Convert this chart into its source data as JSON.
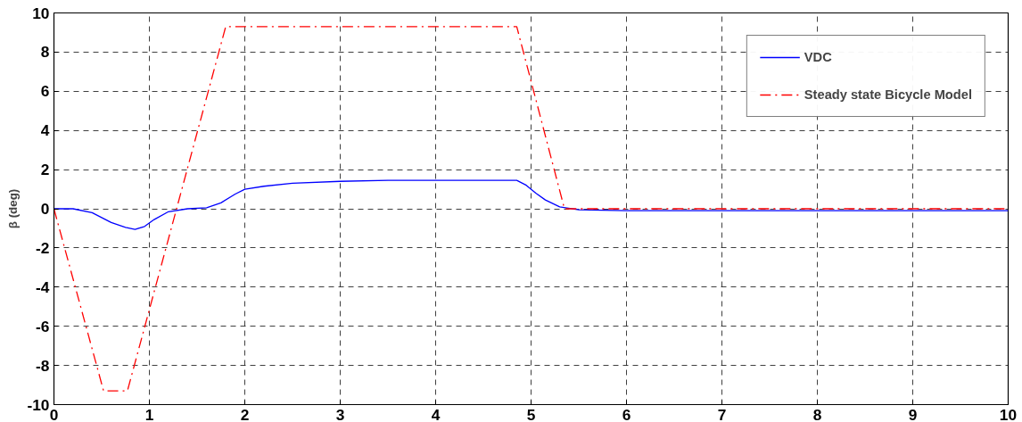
{
  "chart_data": {
    "type": "line",
    "ylabel": "β (deg)",
    "xlim": [
      0,
      10
    ],
    "ylim": [
      -10,
      10
    ],
    "xticks": [
      0,
      1,
      2,
      3,
      4,
      5,
      6,
      7,
      8,
      9,
      10
    ],
    "yticks": [
      -10,
      -8,
      -6,
      -4,
      -2,
      0,
      2,
      4,
      6,
      8,
      10
    ],
    "grid": true,
    "legend": "top right",
    "series": [
      {
        "name": "VDC",
        "color": "#0000ff",
        "line_style": "solid",
        "x": [
          0,
          0.2,
          0.4,
          0.6,
          0.75,
          0.85,
          0.95,
          1.05,
          1.2,
          1.4,
          1.6,
          1.75,
          1.9,
          2.0,
          2.2,
          2.5,
          3.0,
          3.5,
          4.0,
          4.5,
          4.85,
          4.95,
          5.05,
          5.15,
          5.3,
          5.5,
          6.0,
          7.0,
          8.0,
          9.0,
          10.0
        ],
        "values": [
          0,
          0,
          -0.2,
          -0.7,
          -0.95,
          -1.05,
          -0.9,
          -0.55,
          -0.15,
          0,
          0.05,
          0.3,
          0.75,
          1.0,
          1.15,
          1.3,
          1.4,
          1.45,
          1.45,
          1.45,
          1.45,
          1.2,
          0.8,
          0.45,
          0.1,
          -0.05,
          -0.1,
          -0.1,
          -0.1,
          -0.1,
          -0.1
        ]
      },
      {
        "name": "Steady state Bicycle Model",
        "color": "#ff0000",
        "line_style": "dashed",
        "x": [
          0,
          0.52,
          0.77,
          1.8,
          4.85,
          5.35,
          10
        ],
        "values": [
          0,
          -9.3,
          -9.3,
          9.3,
          9.3,
          0,
          0
        ]
      }
    ]
  }
}
